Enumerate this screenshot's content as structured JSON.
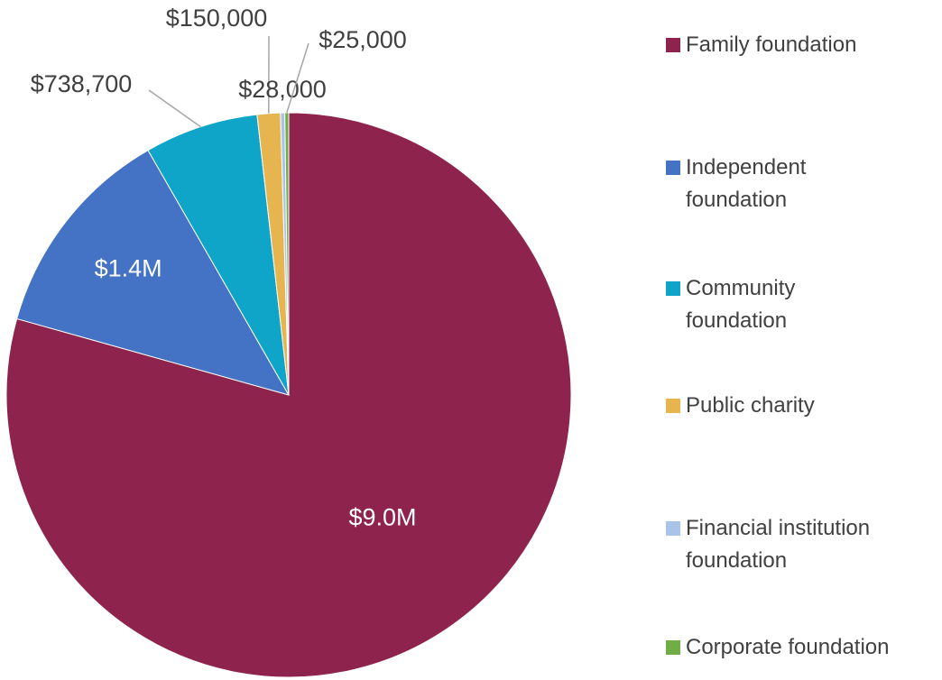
{
  "chart_data": {
    "type": "pie",
    "categories": [
      "Family foundation",
      "Independent foundation",
      "Community foundation",
      "Public charity",
      "Financial institution foundation",
      "Corporate foundation"
    ],
    "values": [
      9000000,
      1400000,
      738700,
      150000,
      28000,
      25000
    ],
    "value_labels": [
      "$9.0M",
      "$1.4M",
      "$738,700",
      "$150,000",
      "$28,000",
      "$25,000"
    ],
    "colors": [
      "#8e244d",
      "#4472c4",
      "#0ea5c9",
      "#e6b550",
      "#a9c4e8",
      "#70ad47"
    ]
  }
}
